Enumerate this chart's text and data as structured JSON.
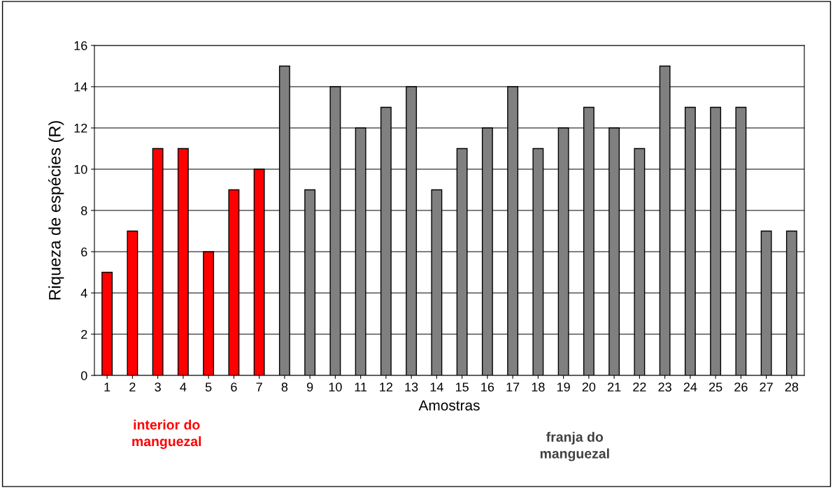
{
  "chart_data": {
    "type": "bar",
    "xlabel": "Amostras",
    "ylabel": "Riqueza de espécies (R)",
    "categories": [
      "1",
      "2",
      "3",
      "4",
      "5",
      "6",
      "7",
      "8",
      "9",
      "10",
      "11",
      "12",
      "13",
      "14",
      "15",
      "16",
      "17",
      "18",
      "19",
      "20",
      "21",
      "22",
      "23",
      "24",
      "25",
      "26",
      "27",
      "28"
    ],
    "values": [
      5,
      7,
      11,
      11,
      6,
      9,
      10,
      15,
      9,
      14,
      12,
      13,
      14,
      9,
      11,
      12,
      14,
      11,
      12,
      13,
      12,
      11,
      15,
      13,
      13,
      13,
      7,
      7
    ],
    "colors": [
      "#ff0000",
      "#ff0000",
      "#ff0000",
      "#ff0000",
      "#ff0000",
      "#ff0000",
      "#ff0000",
      "#808080",
      "#808080",
      "#808080",
      "#808080",
      "#808080",
      "#808080",
      "#808080",
      "#808080",
      "#808080",
      "#808080",
      "#808080",
      "#808080",
      "#808080",
      "#808080",
      "#808080",
      "#808080",
      "#808080",
      "#808080",
      "#808080",
      "#808080",
      "#808080"
    ],
    "ylim": [
      0,
      16
    ],
    "yticks": [
      0,
      2,
      4,
      6,
      8,
      10,
      12,
      14,
      16
    ],
    "grid": "y",
    "legend": false,
    "annotations": [
      "interior do\nmanguezal",
      "franja do\nmanguezal"
    ]
  }
}
